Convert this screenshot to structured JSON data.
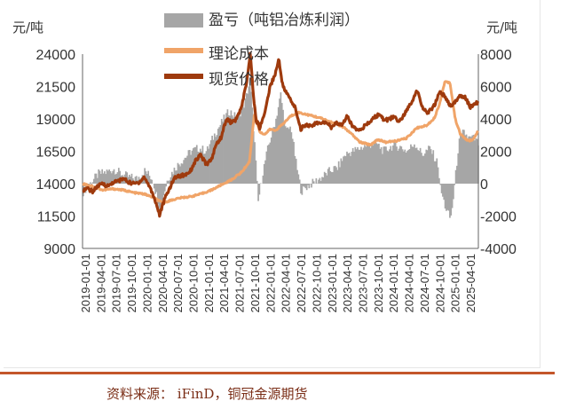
{
  "source_note": "资料来源： iFinD，铜冠金源期货",
  "chart_data": {
    "type": "area",
    "left_unit": "元/吨",
    "right_unit": "元/吨",
    "left_axis": {
      "min": 9000,
      "max": 24000,
      "ticks": [
        9000,
        11500,
        14000,
        16500,
        19000,
        21500,
        24000
      ]
    },
    "right_axis": {
      "min": -4000,
      "max": 8000,
      "ticks": [
        -4000,
        -2000,
        0,
        2000,
        4000,
        6000,
        8000
      ]
    },
    "x_labels": [
      "2019-01-01",
      "2019-04-01",
      "2019-07-01",
      "2019-10-01",
      "2020-01-01",
      "2020-04-01",
      "2020-07-01",
      "2020-10-01",
      "2021-01-01",
      "2021-04-01",
      "2021-07-01",
      "2021-10-01",
      "2022-01-01",
      "2022-04-01",
      "2022-07-01",
      "2022-10-01",
      "2023-01-01",
      "2023-04-01",
      "2023-07-01",
      "2023-10-01",
      "2024-01-01",
      "2024-04-01",
      "2024-07-01",
      "2024-10-01",
      "2025-01-01",
      "2025-04-01"
    ],
    "legend_placement": "top-center",
    "grid": false,
    "series": [
      {
        "name": "盈亏（吨铝冶炼利润）",
        "type": "area",
        "axis": "right",
        "color": "#a6a6a6",
        "points": [
          [
            "2019-01-01",
            -500
          ],
          [
            "2019-02-15",
            50
          ],
          [
            "2019-04-01",
            600
          ],
          [
            "2019-05-15",
            700
          ],
          [
            "2019-07-01",
            900
          ],
          [
            "2019-08-15",
            600
          ],
          [
            "2019-10-01",
            400
          ],
          [
            "2019-11-15",
            300
          ],
          [
            "2020-01-01",
            800
          ],
          [
            "2020-02-15",
            300
          ],
          [
            "2020-04-01",
            -1600
          ],
          [
            "2020-04-20",
            -700
          ],
          [
            "2020-05-15",
            300
          ],
          [
            "2020-07-01",
            1000
          ],
          [
            "2020-08-15",
            1500
          ],
          [
            "2020-10-01",
            2000
          ],
          [
            "2020-11-15",
            2200
          ],
          [
            "2021-01-01",
            2000
          ],
          [
            "2021-02-15",
            3000
          ],
          [
            "2021-04-01",
            3800
          ],
          [
            "2021-05-15",
            4500
          ],
          [
            "2021-07-01",
            4000
          ],
          [
            "2021-08-15",
            5000
          ],
          [
            "2021-09-15",
            6400
          ],
          [
            "2021-10-15",
            2000
          ],
          [
            "2021-11-01",
            -1200
          ],
          [
            "2021-12-01",
            800
          ],
          [
            "2022-01-01",
            2300
          ],
          [
            "2022-02-15",
            4000
          ],
          [
            "2022-03-15",
            5500
          ],
          [
            "2022-04-15",
            3200
          ],
          [
            "2022-05-15",
            3500
          ],
          [
            "2022-06-15",
            1200
          ],
          [
            "2022-07-15",
            -500
          ],
          [
            "2022-08-15",
            -200
          ],
          [
            "2022-10-01",
            100
          ],
          [
            "2022-11-15",
            400
          ],
          [
            "2023-01-01",
            800
          ],
          [
            "2023-02-15",
            1000
          ],
          [
            "2023-04-01",
            1800
          ],
          [
            "2023-05-15",
            2000
          ],
          [
            "2023-07-01",
            2200
          ],
          [
            "2023-08-15",
            2400
          ],
          [
            "2023-10-01",
            2500
          ],
          [
            "2023-11-15",
            2000
          ],
          [
            "2024-01-01",
            2300
          ],
          [
            "2024-02-15",
            2300
          ],
          [
            "2024-04-01",
            2000
          ],
          [
            "2024-05-15",
            2500
          ],
          [
            "2024-07-01",
            1800
          ],
          [
            "2024-08-15",
            2200
          ],
          [
            "2024-10-01",
            1200
          ],
          [
            "2024-10-15",
            -300
          ],
          [
            "2024-11-15",
            -1500
          ],
          [
            "2024-12-15",
            -2200
          ],
          [
            "2025-01-01",
            -800
          ],
          [
            "2025-02-01",
            2500
          ],
          [
            "2025-03-01",
            3200
          ],
          [
            "2025-04-01",
            2800
          ],
          [
            "2025-05-01",
            2800
          ],
          [
            "2025-06-01",
            2400
          ]
        ]
      },
      {
        "name": "理论成本",
        "type": "line",
        "axis": "left",
        "color": "#f0a468",
        "points": [
          [
            "2019-01-01",
            14000
          ],
          [
            "2019-03-01",
            13800
          ],
          [
            "2019-05-01",
            13500
          ],
          [
            "2019-07-01",
            13600
          ],
          [
            "2019-09-01",
            13500
          ],
          [
            "2019-11-01",
            13300
          ],
          [
            "2020-01-01",
            13200
          ],
          [
            "2020-03-01",
            12900
          ],
          [
            "2020-04-20",
            12500
          ],
          [
            "2020-06-01",
            12700
          ],
          [
            "2020-08-01",
            12900
          ],
          [
            "2020-10-01",
            13000
          ],
          [
            "2020-12-01",
            13200
          ],
          [
            "2021-02-01",
            13500
          ],
          [
            "2021-04-01",
            13900
          ],
          [
            "2021-06-01",
            14300
          ],
          [
            "2021-08-01",
            14900
          ],
          [
            "2021-09-15",
            15700
          ],
          [
            "2021-10-15",
            19500
          ],
          [
            "2021-11-15",
            18000
          ],
          [
            "2021-12-15",
            17800
          ],
          [
            "2022-01-15",
            18200
          ],
          [
            "2022-02-15",
            18100
          ],
          [
            "2022-04-01",
            18600
          ],
          [
            "2022-05-15",
            19200
          ],
          [
            "2022-07-01",
            19500
          ],
          [
            "2022-09-01",
            19300
          ],
          [
            "2022-11-01",
            19100
          ],
          [
            "2023-01-01",
            18800
          ],
          [
            "2023-02-15",
            18600
          ],
          [
            "2023-04-01",
            18300
          ],
          [
            "2023-05-15",
            17800
          ],
          [
            "2023-07-01",
            17200
          ],
          [
            "2023-09-01",
            17000
          ],
          [
            "2023-10-15",
            17400
          ],
          [
            "2023-12-01",
            17200
          ],
          [
            "2024-02-01",
            17300
          ],
          [
            "2024-04-01",
            17500
          ],
          [
            "2024-06-01",
            18300
          ],
          [
            "2024-08-01",
            18500
          ],
          [
            "2024-09-15",
            19100
          ],
          [
            "2024-10-15",
            20200
          ],
          [
            "2024-11-15",
            21900
          ],
          [
            "2024-12-15",
            21800
          ],
          [
            "2025-01-15",
            19000
          ],
          [
            "2025-02-15",
            17800
          ],
          [
            "2025-04-01",
            17300
          ],
          [
            "2025-05-01",
            17400
          ],
          [
            "2025-06-01",
            18100
          ]
        ]
      },
      {
        "name": "现货价格",
        "type": "line",
        "axis": "left",
        "color": "#9e3a0d",
        "points": [
          [
            "2019-01-01",
            13500
          ],
          [
            "2019-02-01",
            13600
          ],
          [
            "2019-03-01",
            13400
          ],
          [
            "2019-04-01",
            13800
          ],
          [
            "2019-05-01",
            14000
          ],
          [
            "2019-06-01",
            13800
          ],
          [
            "2019-07-01",
            14100
          ],
          [
            "2019-08-01",
            14200
          ],
          [
            "2019-09-01",
            14400
          ],
          [
            "2019-10-01",
            14100
          ],
          [
            "2019-11-01",
            14000
          ],
          [
            "2019-12-01",
            14100
          ],
          [
            "2020-01-01",
            14500
          ],
          [
            "2020-02-01",
            13800
          ],
          [
            "2020-03-01",
            12900
          ],
          [
            "2020-04-01",
            11600
          ],
          [
            "2020-05-01",
            12800
          ],
          [
            "2020-06-01",
            13700
          ],
          [
            "2020-07-01",
            14500
          ],
          [
            "2020-08-01",
            14600
          ],
          [
            "2020-09-01",
            14700
          ],
          [
            "2020-10-01",
            15000
          ],
          [
            "2020-11-01",
            15800
          ],
          [
            "2020-12-01",
            16200
          ],
          [
            "2021-01-01",
            15500
          ],
          [
            "2021-02-01",
            15800
          ],
          [
            "2021-03-01",
            17000
          ],
          [
            "2021-04-01",
            17600
          ],
          [
            "2021-05-01",
            19000
          ],
          [
            "2021-06-01",
            18700
          ],
          [
            "2021-07-01",
            19000
          ],
          [
            "2021-08-01",
            20000
          ],
          [
            "2021-09-01",
            22000
          ],
          [
            "2021-09-20",
            24100
          ],
          [
            "2021-10-10",
            20500
          ],
          [
            "2021-10-25",
            18900
          ],
          [
            "2021-11-15",
            18300
          ],
          [
            "2021-12-15",
            19500
          ],
          [
            "2022-01-15",
            21500
          ],
          [
            "2022-02-15",
            22500
          ],
          [
            "2022-03-08",
            23600
          ],
          [
            "2022-04-01",
            21500
          ],
          [
            "2022-05-15",
            20500
          ],
          [
            "2022-06-15",
            19800
          ],
          [
            "2022-07-15",
            18200
          ],
          [
            "2022-08-15",
            18600
          ],
          [
            "2022-09-15",
            18400
          ],
          [
            "2022-10-15",
            18700
          ],
          [
            "2022-11-15",
            18600
          ],
          [
            "2022-12-15",
            18800
          ],
          [
            "2023-01-15",
            18300
          ],
          [
            "2023-02-15",
            18700
          ],
          [
            "2023-03-15",
            18500
          ],
          [
            "2023-04-15",
            19200
          ],
          [
            "2023-05-15",
            18500
          ],
          [
            "2023-06-15",
            18200
          ],
          [
            "2023-07-15",
            18300
          ],
          [
            "2023-08-15",
            18600
          ],
          [
            "2023-09-15",
            19000
          ],
          [
            "2023-10-15",
            19300
          ],
          [
            "2023-11-15",
            19000
          ],
          [
            "2023-12-15",
            18900
          ],
          [
            "2024-01-15",
            19200
          ],
          [
            "2024-02-15",
            18800
          ],
          [
            "2024-03-15",
            19200
          ],
          [
            "2024-04-15",
            20000
          ],
          [
            "2024-05-15",
            20600
          ],
          [
            "2024-06-01",
            21300
          ],
          [
            "2024-07-01",
            20000
          ],
          [
            "2024-08-01",
            19400
          ],
          [
            "2024-09-01",
            19800
          ],
          [
            "2024-10-01",
            20500
          ],
          [
            "2024-10-15",
            21200
          ],
          [
            "2024-11-15",
            20700
          ],
          [
            "2024-12-15",
            20000
          ],
          [
            "2025-01-15",
            20300
          ],
          [
            "2025-02-15",
            20800
          ],
          [
            "2025-03-15",
            20700
          ],
          [
            "2025-04-15",
            19900
          ],
          [
            "2025-05-15",
            20200
          ],
          [
            "2025-06-01",
            20300
          ]
        ]
      }
    ]
  }
}
